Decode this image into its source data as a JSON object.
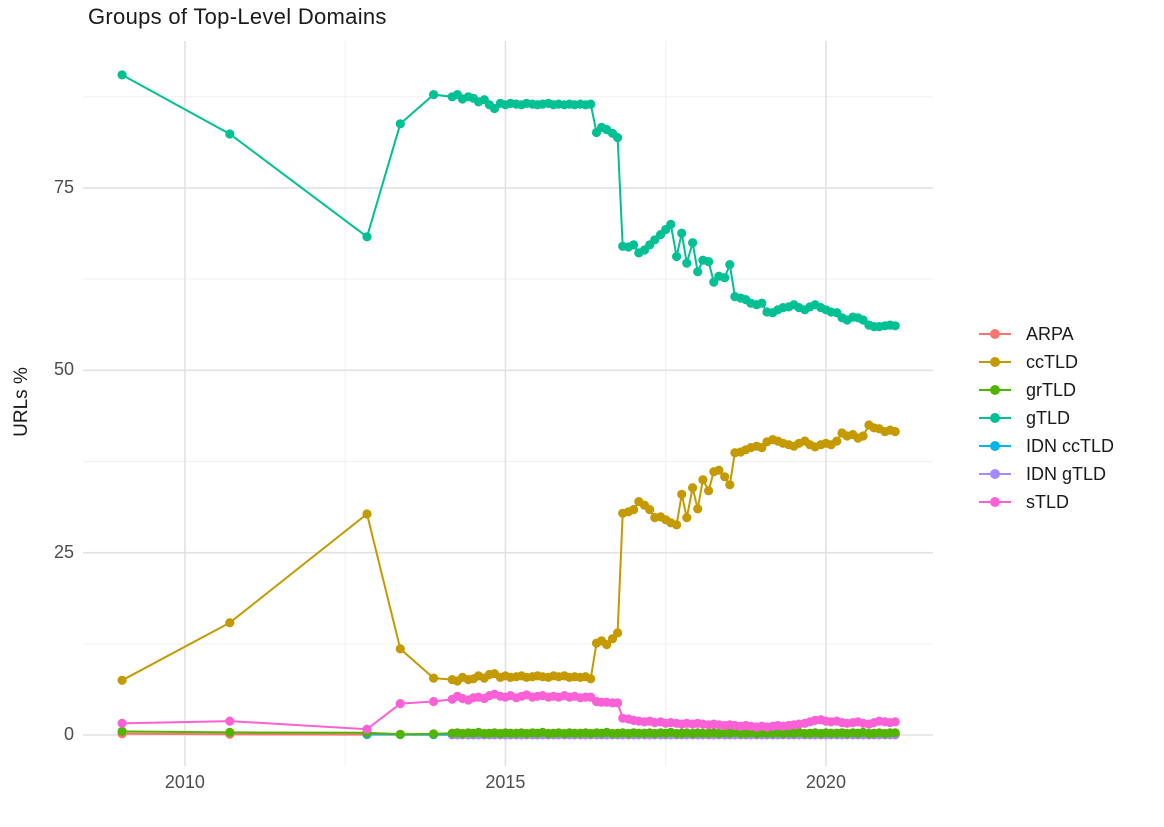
{
  "title": "Groups of Top-Level Domains",
  "y_axis_title": "URLs %",
  "chart_data": {
    "type": "line",
    "title": "Groups of Top-Level Domains",
    "xlabel": "",
    "ylabel": "URLs %",
    "points_visible": true,
    "grid": true,
    "legend_position": "right",
    "x_axis": {
      "range": [
        2008.41,
        2021.67
      ],
      "ticks": [
        2010,
        2015,
        2020
      ],
      "tick_labels": [
        "2010",
        "2015",
        "2020"
      ],
      "minor_ticks": [
        2012.5,
        2017.5
      ]
    },
    "y_axis": {
      "range": [
        -4.25,
        95.15
      ],
      "ticks": [
        0,
        25,
        50,
        75
      ],
      "tick_labels": [
        "0",
        "25",
        "50",
        "75"
      ],
      "minor_ticks": [
        12.5,
        37.5,
        62.5,
        87.5
      ]
    },
    "x_monthly": [
      2014.17,
      2014.25,
      2014.33,
      2014.42,
      2014.5,
      2014.58,
      2014.67,
      2014.75,
      2014.83,
      2014.92,
      2015.0,
      2015.08,
      2015.17,
      2015.25,
      2015.33,
      2015.42,
      2015.5,
      2015.58,
      2015.67,
      2015.75,
      2015.83,
      2015.92,
      2016.0,
      2016.08,
      2016.17,
      2016.25,
      2016.33,
      2016.42,
      2016.5,
      2016.58,
      2016.67,
      2016.75,
      2016.83,
      2016.92,
      2017.0,
      2017.08,
      2017.17,
      2017.25,
      2017.33,
      2017.42,
      2017.5,
      2017.58,
      2017.67,
      2017.75,
      2017.83,
      2017.92,
      2018.0,
      2018.08,
      2018.17,
      2018.25,
      2018.33,
      2018.42,
      2018.5,
      2018.58,
      2018.67,
      2018.75,
      2018.83,
      2018.92,
      2019.0,
      2019.08,
      2019.17,
      2019.25,
      2019.33,
      2019.42,
      2019.5,
      2019.58,
      2019.67,
      2019.75,
      2019.83,
      2019.92,
      2020.0,
      2020.08,
      2020.17,
      2020.25,
      2020.33,
      2020.42,
      2020.5,
      2020.58,
      2020.67,
      2020.75,
      2020.83,
      2020.92,
      2021.0,
      2021.08
    ],
    "series": [
      {
        "name": "ARPA",
        "color": "#F8766D",
        "early": [
          [
            2009.02,
            0.18
          ],
          [
            2010.7,
            0.1
          ],
          [
            2012.84,
            0.06
          ]
        ],
        "fill_value": 0.03
      },
      {
        "name": "ccTLD",
        "color": "#C49A00",
        "early": [
          [
            2009.02,
            7.5
          ],
          [
            2010.7,
            15.4
          ],
          [
            2012.84,
            30.3
          ],
          [
            2013.36,
            11.8
          ],
          [
            2013.88,
            7.8
          ]
        ],
        "values": [
          7.6,
          7.4,
          7.9,
          7.6,
          7.7,
          8.1,
          7.8,
          8.3,
          8.4,
          7.9,
          8.1,
          7.9,
          8.0,
          8.1,
          7.9,
          8.0,
          8.1,
          8.0,
          7.9,
          8.1,
          8.0,
          8.1,
          7.9,
          8.0,
          7.9,
          8.0,
          7.7,
          12.6,
          12.9,
          12.4,
          13.2,
          14.0,
          30.4,
          30.6,
          30.9,
          32.0,
          31.5,
          30.9,
          29.8,
          29.9,
          29.5,
          29.1,
          28.8,
          33.0,
          29.8,
          33.9,
          31.0,
          35.0,
          33.5,
          36.1,
          36.3,
          35.4,
          34.3,
          38.7,
          38.8,
          39.1,
          39.4,
          39.6,
          39.4,
          40.2,
          40.5,
          40.3,
          40.0,
          39.8,
          39.6,
          40.0,
          40.3,
          39.8,
          39.5,
          39.8,
          40.0,
          39.8,
          40.3,
          41.4,
          41.0,
          41.2,
          40.7,
          41.0,
          42.5,
          42.1,
          42.0,
          41.6,
          41.8,
          41.6
        ]
      },
      {
        "name": "IDN ccTLD",
        "color": "#00B6EB",
        "early": [
          [
            2012.84,
            0.1
          ],
          [
            2013.36,
            0.06
          ],
          [
            2013.88,
            0.05
          ]
        ],
        "fill_value": 0.05
      },
      {
        "name": "IDN gTLD",
        "color": "#A58AFF",
        "early": [],
        "fill_value": 0.04
      },
      {
        "name": "grTLD",
        "color": "#53B400",
        "early": [
          [
            2009.02,
            0.5
          ],
          [
            2010.7,
            0.35
          ],
          [
            2012.84,
            0.3
          ],
          [
            2013.36,
            0.1
          ],
          [
            2013.88,
            0.15
          ]
        ],
        "values": [
          0.25,
          0.3,
          0.2,
          0.3,
          0.25,
          0.35,
          0.2,
          0.25,
          0.3,
          0.2,
          0.3,
          0.25,
          0.25,
          0.3,
          0.2,
          0.3,
          0.25,
          0.35,
          0.2,
          0.25,
          0.3,
          0.2,
          0.3,
          0.25,
          0.25,
          0.3,
          0.2,
          0.3,
          0.25,
          0.35,
          0.2,
          0.25,
          0.3,
          0.2,
          0.3,
          0.25,
          0.25,
          0.3,
          0.2,
          0.3,
          0.25,
          0.35,
          0.2,
          0.25,
          0.3,
          0.2,
          0.3,
          0.25,
          0.25,
          0.3,
          0.2,
          0.3,
          0.25,
          0.35,
          0.2,
          0.25,
          0.3,
          0.2,
          0.3,
          0.25,
          0.25,
          0.3,
          0.2,
          0.3,
          0.25,
          0.35,
          0.2,
          0.25,
          0.3,
          0.2,
          0.3,
          0.25,
          0.25,
          0.3,
          0.2,
          0.3,
          0.25,
          0.35,
          0.2,
          0.25,
          0.3,
          0.2,
          0.3,
          0.3
        ]
      },
      {
        "name": "gTLD",
        "color": "#00C094",
        "early": [
          [
            2009.02,
            90.5
          ],
          [
            2010.7,
            82.4
          ],
          [
            2012.84,
            68.3
          ],
          [
            2013.36,
            83.8
          ],
          [
            2013.88,
            87.8
          ]
        ],
        "values": [
          87.5,
          87.8,
          87.2,
          87.5,
          87.3,
          86.8,
          87.1,
          86.4,
          85.9,
          86.6,
          86.4,
          86.6,
          86.5,
          86.4,
          86.6,
          86.5,
          86.4,
          86.5,
          86.6,
          86.4,
          86.5,
          86.4,
          86.5,
          86.4,
          86.5,
          86.4,
          86.5,
          82.6,
          83.3,
          83.0,
          82.5,
          81.9,
          67.0,
          66.9,
          67.2,
          66.1,
          66.5,
          67.2,
          67.9,
          68.6,
          69.3,
          70.0,
          65.6,
          68.8,
          64.7,
          67.5,
          63.5,
          65.1,
          64.9,
          62.1,
          62.9,
          62.7,
          64.5,
          60.1,
          59.9,
          59.7,
          59.2,
          59.0,
          59.2,
          58.0,
          57.9,
          58.3,
          58.6,
          58.7,
          59.0,
          58.6,
          58.3,
          58.7,
          59.0,
          58.6,
          58.3,
          58.0,
          57.9,
          57.2,
          56.9,
          57.3,
          57.2,
          56.9,
          56.2,
          56.0,
          56.0,
          56.1,
          56.2,
          56.1
        ]
      },
      {
        "name": "sTLD",
        "color": "#FB61D7",
        "early": [
          [
            2009.02,
            1.6
          ],
          [
            2010.7,
            1.9
          ],
          [
            2012.84,
            0.8
          ],
          [
            2013.36,
            4.3
          ],
          [
            2013.88,
            4.6
          ]
        ],
        "values": [
          4.9,
          5.3,
          5.0,
          4.8,
          5.1,
          5.2,
          5.0,
          5.4,
          5.6,
          5.3,
          5.2,
          5.4,
          5.1,
          5.3,
          5.5,
          5.2,
          5.3,
          5.4,
          5.2,
          5.3,
          5.2,
          5.4,
          5.2,
          5.3,
          5.1,
          5.2,
          5.2,
          4.6,
          4.5,
          4.5,
          4.4,
          4.4,
          2.3,
          2.2,
          2.0,
          1.9,
          1.8,
          1.9,
          1.7,
          1.8,
          1.6,
          1.7,
          1.6,
          1.5,
          1.6,
          1.5,
          1.6,
          1.5,
          1.4,
          1.5,
          1.4,
          1.3,
          1.4,
          1.3,
          1.2,
          1.3,
          1.2,
          1.1,
          1.2,
          1.1,
          1.2,
          1.3,
          1.2,
          1.3,
          1.4,
          1.5,
          1.6,
          1.8,
          2.0,
          2.1,
          1.9,
          1.8,
          1.9,
          1.7,
          1.6,
          1.7,
          1.8,
          1.6,
          1.5,
          1.7,
          1.9,
          1.8,
          1.7,
          1.8
        ]
      }
    ],
    "legend": [
      {
        "label": "ARPA",
        "color": "#F8766D"
      },
      {
        "label": "ccTLD",
        "color": "#C49A00"
      },
      {
        "label": "grTLD",
        "color": "#53B400"
      },
      {
        "label": "gTLD",
        "color": "#00C094"
      },
      {
        "label": "IDN ccTLD",
        "color": "#00B6EB"
      },
      {
        "label": "IDN gTLD",
        "color": "#A58AFF"
      },
      {
        "label": "sTLD",
        "color": "#FB61D7"
      }
    ],
    "style": {
      "major_grid_color": "#E2E2E2",
      "minor_grid_color": "#F0F0F0",
      "tick_label_color": "#4d4d4d",
      "title_color": "#1a1a1a",
      "point_radius": 4.6,
      "line_width": 2
    }
  }
}
